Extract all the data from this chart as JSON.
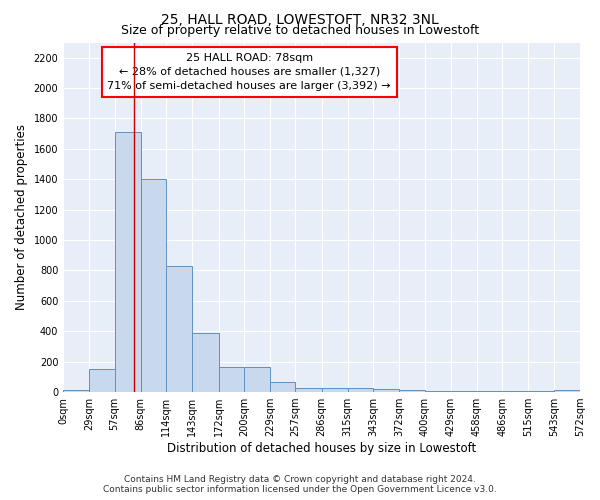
{
  "title": "25, HALL ROAD, LOWESTOFT, NR32 3NL",
  "subtitle": "Size of property relative to detached houses in Lowestoft",
  "xlabel": "Distribution of detached houses by size in Lowestoft",
  "ylabel": "Number of detached properties",
  "bin_edges": [
    0,
    29,
    57,
    86,
    114,
    143,
    172,
    200,
    229,
    257,
    286,
    315,
    343,
    372,
    400,
    429,
    458,
    486,
    515,
    543,
    572
  ],
  "bar_heights": [
    15,
    155,
    1710,
    1400,
    830,
    390,
    165,
    165,
    65,
    30,
    30,
    25,
    20,
    15,
    5,
    5,
    5,
    5,
    5,
    15
  ],
  "bar_color": "#c8d8ed",
  "bar_edge_color": "#6090c0",
  "bar_edge_width": 0.7,
  "red_line_x": 78,
  "red_line_color": "#cc0000",
  "annotation_line1": "25 HALL ROAD: 78sqm",
  "annotation_line2": "← 28% of detached houses are smaller (1,327)",
  "annotation_line3": "71% of semi-detached houses are larger (3,392) →",
  "ylim": [
    0,
    2300
  ],
  "yticks": [
    0,
    200,
    400,
    600,
    800,
    1000,
    1200,
    1400,
    1600,
    1800,
    2000,
    2200
  ],
  "background_color": "#e8eef8",
  "grid_color": "#ffffff",
  "footer_line1": "Contains HM Land Registry data © Crown copyright and database right 2024.",
  "footer_line2": "Contains public sector information licensed under the Open Government Licence v3.0.",
  "title_fontsize": 10,
  "subtitle_fontsize": 9,
  "annotation_fontsize": 8,
  "axis_label_fontsize": 8.5,
  "ylabel_fontsize": 8.5,
  "tick_fontsize": 7,
  "footer_fontsize": 6.5
}
